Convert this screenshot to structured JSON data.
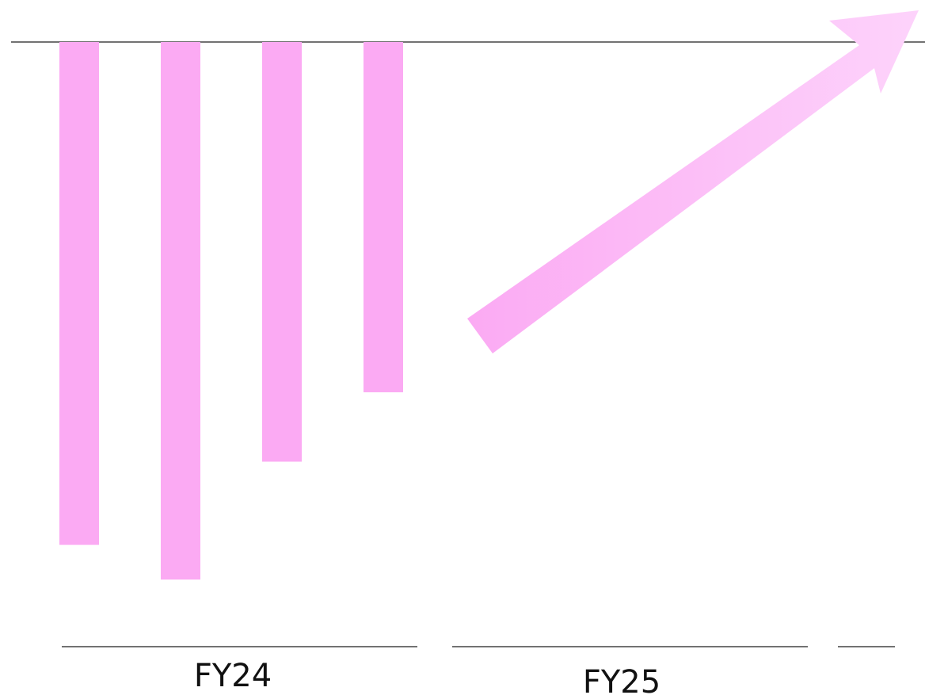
{
  "chart_data": {
    "type": "bar",
    "orientation": "vertical-downward",
    "title": "",
    "xlabel": "",
    "ylabel": "",
    "categories": [
      "",
      "",
      "",
      ""
    ],
    "values": [
      -14.5,
      -15.5,
      -12.1,
      -10.1
    ],
    "ylim": [
      -17,
      0
    ],
    "groups": [
      {
        "label": "FY24",
        "category_count": 4
      },
      {
        "label": "FY25",
        "category_count": 0
      }
    ],
    "annotations": [
      {
        "type": "trend-arrow",
        "direction": "up-right",
        "group": "FY25"
      }
    ],
    "grid": false,
    "legend": "none",
    "colors": {
      "bar": "#fbaaf3",
      "arrow_start": "#fbaaf3",
      "arrow_end": "#fdd3fb",
      "axis_line": "#444444",
      "label_text": "#111111"
    }
  }
}
